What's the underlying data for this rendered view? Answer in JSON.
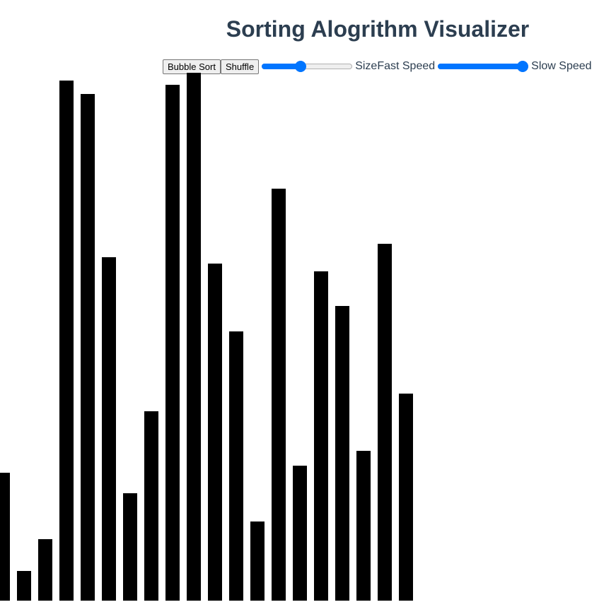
{
  "page": {
    "title": "Sorting Alogrithm Visualizer"
  },
  "controls": {
    "bubble_sort_label": "Bubble Sort",
    "shuffle_label": "Shuffle",
    "size_label": "Size",
    "fast_speed_label": "Fast Speed",
    "slow_speed_label": "Slow Speed",
    "size_value_fraction": 0.42,
    "speed_value_fraction": 1.0,
    "accent_color": "#0075ff"
  },
  "bars": {
    "color": "#000000",
    "values": [
      181,
      42,
      87,
      736,
      717,
      486,
      152,
      268,
      730,
      747,
      477,
      381,
      112,
      583,
      191,
      466,
      417,
      212,
      505,
      293
    ]
  }
}
